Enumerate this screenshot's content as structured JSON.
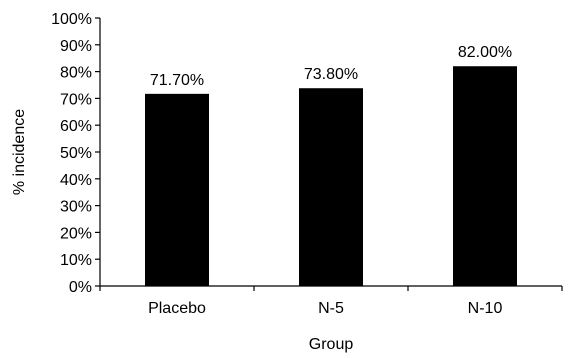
{
  "chart_data": {
    "type": "bar",
    "title": "",
    "xlabel": "Group",
    "ylabel": "% incidence",
    "categories": [
      "Placebo",
      "N-5",
      "N-10"
    ],
    "values": [
      71.7,
      73.8,
      82.0
    ],
    "data_labels": [
      "71.70%",
      "73.80%",
      "82.00%"
    ],
    "ylim": [
      0,
      100
    ],
    "y_ticks": [
      0,
      10,
      20,
      30,
      40,
      50,
      60,
      70,
      80,
      90,
      100
    ],
    "y_tick_labels": [
      "0%",
      "10%",
      "20%",
      "30%",
      "40%",
      "50%",
      "60%",
      "70%",
      "80%",
      "90%",
      "100%"
    ],
    "bar_color": "#000000",
    "grid": false,
    "legend": "none"
  }
}
